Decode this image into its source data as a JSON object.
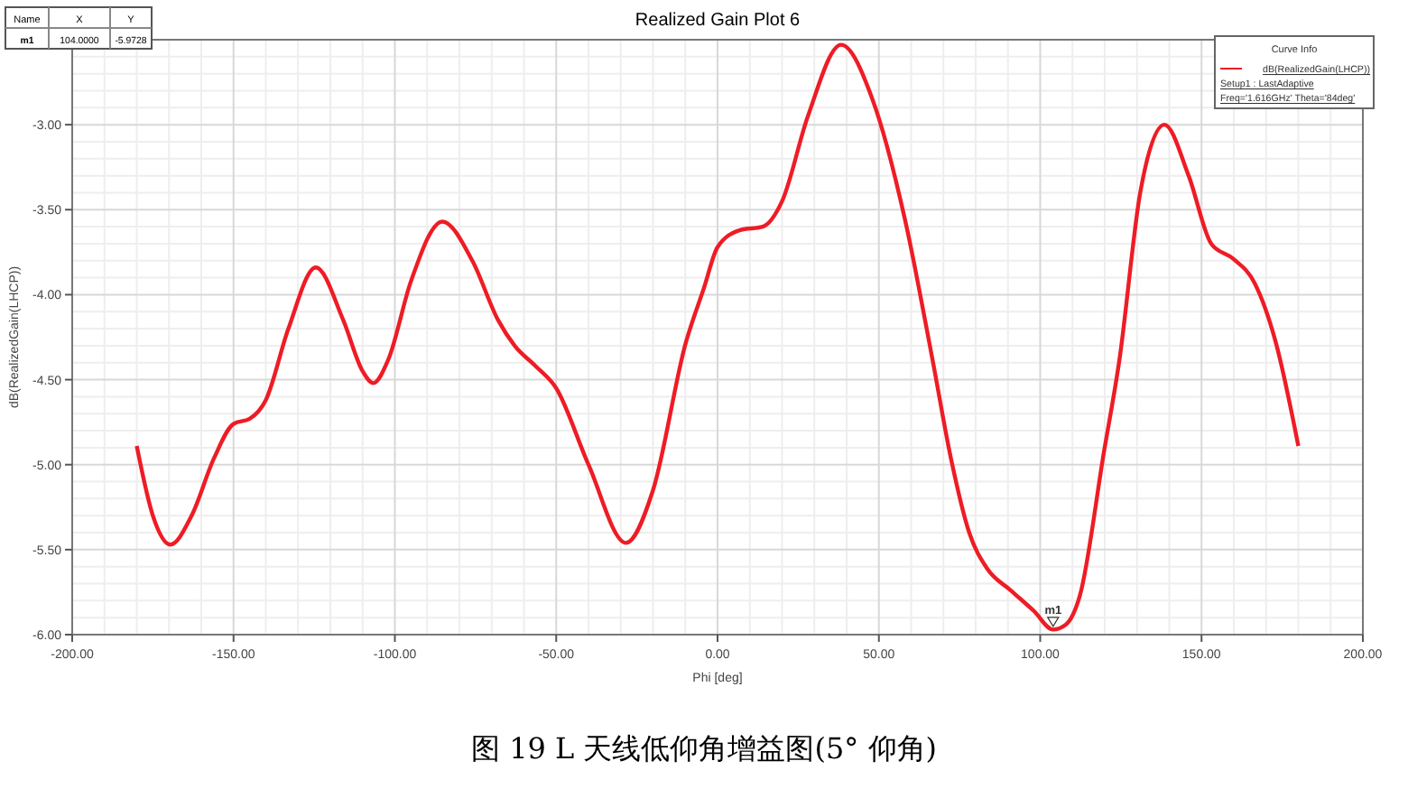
{
  "chart_data": {
    "type": "line",
    "title": "Realized Gain Plot 6",
    "xlabel": "Phi [deg]",
    "ylabel": "dB(RealizedGain(LHCP))",
    "legend_title": "Curve Info",
    "legend": "top right",
    "grid": true,
    "line_style": "solid",
    "xlim": [
      -200,
      200
    ],
    "ylim": [
      -6,
      -2.5
    ],
    "xticks": [
      {
        "value": -200,
        "label": "-200.00"
      },
      {
        "value": -150,
        "label": "-150.00"
      },
      {
        "value": -100,
        "label": "-100.00"
      },
      {
        "value": -50,
        "label": "-50.00"
      },
      {
        "value": 0,
        "label": "0.00"
      },
      {
        "value": 50,
        "label": "50.00"
      },
      {
        "value": 100,
        "label": "100.00"
      },
      {
        "value": 150,
        "label": "150.00"
      },
      {
        "value": 200,
        "label": "200.00"
      }
    ],
    "yticks": [
      {
        "value": -6,
        "label": "-6.00"
      },
      {
        "value": -5.5,
        "label": "-5.50"
      },
      {
        "value": -5,
        "label": "-5.00"
      },
      {
        "value": -4.5,
        "label": "-4.50"
      },
      {
        "value": -4,
        "label": "-4.00"
      },
      {
        "value": -3.5,
        "label": "-3.50"
      },
      {
        "value": -3,
        "label": "-3.00"
      },
      {
        "value": -2.5,
        "label": null
      }
    ],
    "x": [
      -180,
      -175,
      -169.6,
      -163,
      -156,
      -150,
      -145,
      -140,
      -133,
      -124.5,
      -116,
      -110,
      -106.7,
      -102,
      -95,
      -85.3,
      -76,
      -68,
      -62.9,
      -56.4,
      -50,
      -40,
      -28.4,
      -20,
      -9.8,
      -4.2,
      0,
      7,
      14,
      20,
      28,
      38.3,
      48,
      58,
      66.7,
      72.3,
      78,
      83.5,
      90.9,
      98,
      104,
      108,
      112.3,
      119.8,
      124.5,
      131,
      138.5,
      146,
      153,
      159.9,
      166.4,
      173,
      180
    ],
    "series": [
      {
        "name": "dB(RealizedGain(LHCP))",
        "color": "#ee1c25",
        "values": [
          -4.89,
          -5.3,
          -5.47,
          -5.3,
          -4.96,
          -4.76,
          -4.73,
          -4.62,
          -4.2,
          -3.84,
          -4.15,
          -4.45,
          -4.52,
          -4.38,
          -3.92,
          -3.57,
          -3.8,
          -4.15,
          -4.3,
          -4.42,
          -4.55,
          -5.0,
          -5.46,
          -5.15,
          -4.28,
          -3.96,
          -3.72,
          -3.62,
          -3.6,
          -3.45,
          -2.95,
          -2.53,
          -2.85,
          -3.55,
          -4.39,
          -4.96,
          -5.4,
          -5.61,
          -5.74,
          -5.86,
          -5.97,
          -5.94,
          -5.77,
          -4.92,
          -4.39,
          -3.4,
          -3.0,
          -3.3,
          -3.7,
          -3.79,
          -3.93,
          -4.28,
          -4.89
        ]
      }
    ],
    "annotations": [
      "Name",
      "X",
      "Y",
      "m1",
      "104.0000",
      "-5.9728",
      "Setup1 : LastAdaptive",
      "Freq='1.616GHz' Theta='84deg'",
      "图 19 L 天线低仰角增益图(5° 仰角)",
      {
        "text": "m1",
        "x": 104,
        "y": -5.9728
      }
    ]
  }
}
